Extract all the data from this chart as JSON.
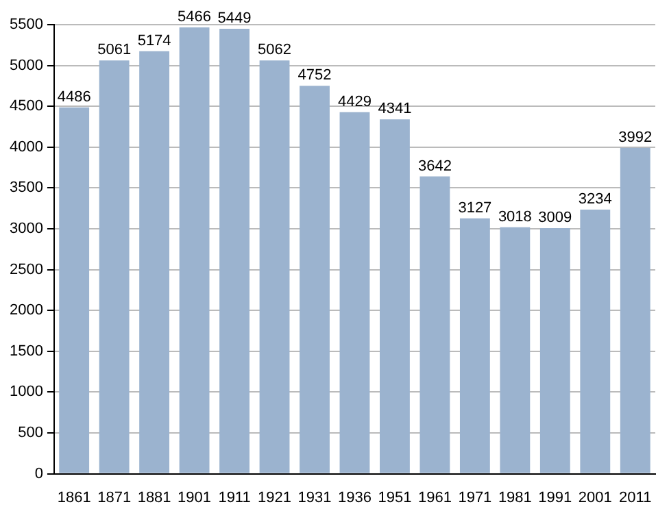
{
  "chart_data": {
    "type": "bar",
    "categories": [
      "1861",
      "1871",
      "1881",
      "1901",
      "1911",
      "1921",
      "1931",
      "1936",
      "1951",
      "1961",
      "1971",
      "1981",
      "1991",
      "2001",
      "2011"
    ],
    "values": [
      4486,
      5061,
      5174,
      5466,
      5449,
      5062,
      4752,
      4429,
      4341,
      3642,
      3127,
      3018,
      3009,
      3234,
      3992
    ],
    "color": "#9bb3cf",
    "ylim": [
      0,
      5500
    ],
    "yticks": [
      0,
      500,
      1000,
      1500,
      2000,
      2500,
      3000,
      3500,
      4000,
      4500,
      5000,
      5500
    ],
    "grid": "y",
    "data_labels": true
  }
}
